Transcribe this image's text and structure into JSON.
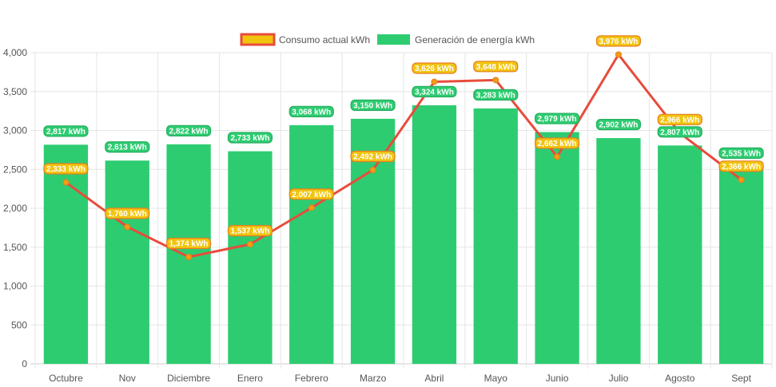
{
  "chart_data": {
    "type": "bar",
    "title": "",
    "xlabel": "",
    "ylabel": "",
    "ylim": [
      0,
      4000
    ],
    "yticks": [
      0,
      500,
      1000,
      1500,
      2000,
      2500,
      3000,
      3500,
      4000
    ],
    "ytick_labels": [
      "0",
      "500",
      "1,000",
      "1,500",
      "2,000",
      "2,500",
      "3,000",
      "3,500",
      "4,000"
    ],
    "grid": true,
    "legend_position": "top-center",
    "categories": [
      "Octubre",
      "Nov",
      "Diciembre",
      "Enero",
      "Febrero",
      "Marzo",
      "Abril",
      "Mayo",
      "Junio",
      "Julio",
      "Agosto",
      "Sept"
    ],
    "series": [
      {
        "name": "Consumo actual kWh",
        "kind": "line",
        "color": "#e74c3c",
        "label_fill": "#f1c40f",
        "label_border": "#e67e22",
        "values": [
          2333,
          1760,
          1374,
          1537,
          2007,
          2492,
          3626,
          3648,
          2662,
          3976,
          2966,
          2366
        ],
        "labels": [
          "2,333 kWh",
          "1,760 kWh",
          "1,374 kWh",
          "1,537 kWh",
          "2,007 kWh",
          "2,492 kWh",
          "3,626 kWh",
          "3,648 kWh",
          "2,662 kWh",
          "3,976 kWh",
          "2,966 kWh",
          "2,366 kWh"
        ]
      },
      {
        "name": "Generación de energía kWh",
        "kind": "bar",
        "color": "#2ecc71",
        "label_fill": "#2ecc71",
        "label_border": "#27ae60",
        "values": [
          2817,
          2613,
          2822,
          2733,
          3068,
          3150,
          3324,
          3283,
          2979,
          2902,
          2807,
          2535
        ],
        "labels": [
          "2,817 kWh",
          "2,613 kWh",
          "2,822 kWh",
          "2,733 kWh",
          "3,068 kWh",
          "3,150 kWh",
          "3,324 kWh",
          "3,283 kWh",
          "2,979 kWh",
          "2,902 kWh",
          "2,807 kWh",
          "2,535 kWh"
        ]
      }
    ]
  }
}
